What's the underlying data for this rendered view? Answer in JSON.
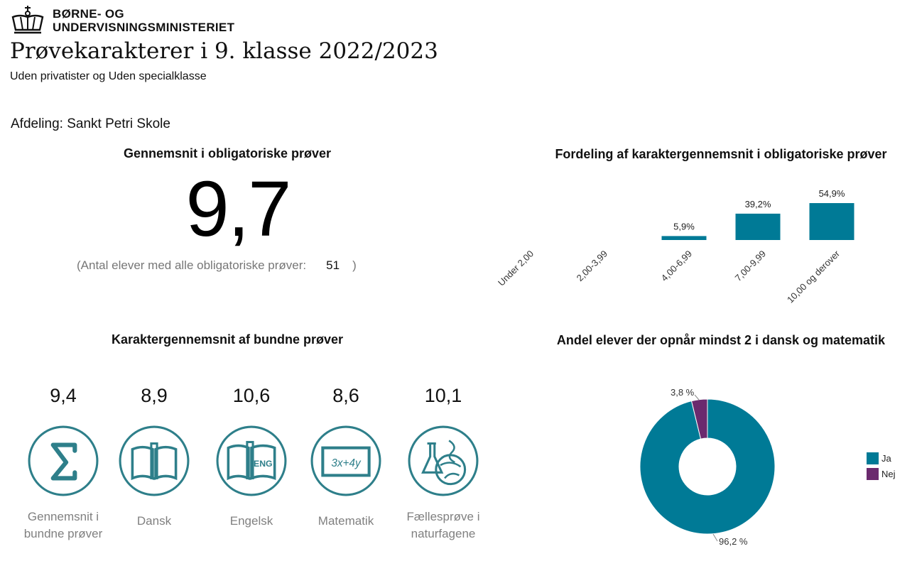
{
  "header": {
    "logo_line1": "BØRNE- OG",
    "logo_line2": "UNDERVISNINGSMINISTERIET",
    "title": "Prøvekarakterer i 9. klasse 2022/2023",
    "subtitle": "Uden privatister og Uden specialklasse",
    "afdeling": "Afdeling: Sankt Petri Skole"
  },
  "average": {
    "title": "Gennemsnit i obligatoriske prøver",
    "value": "9,7",
    "count_prefix": "(Antal elever med alle obligatoriske prøver:",
    "count": "51",
    "count_suffix": ")"
  },
  "subjects_title": "Karaktergennemsnit af bundne prøver",
  "subjects": [
    {
      "value": "9,4",
      "label_lines": [
        "Gennemsnit i",
        "bundne prøver"
      ],
      "icon": "sigma-icon"
    },
    {
      "value": "8,9",
      "label_lines": [
        "Dansk"
      ],
      "icon": "book-icon"
    },
    {
      "value": "10,6",
      "label_lines": [
        "Engelsk"
      ],
      "icon": "english-book-icon"
    },
    {
      "value": "8,6",
      "label_lines": [
        "Matematik"
      ],
      "icon": "math-board-icon"
    },
    {
      "value": "10,1",
      "label_lines": [
        "Fællesprøve i",
        "naturfagene"
      ],
      "icon": "science-icon"
    }
  ],
  "colors": {
    "teal": "#007a96",
    "purple": "#6b2a6e",
    "icon_teal": "#2e7f8a"
  },
  "chart_data": [
    {
      "type": "bar",
      "title": "Fordeling af karaktergennemsnit i obligatoriske prøver",
      "categories": [
        "Under 2,00",
        "2,00-3,99",
        "4,00-6,99",
        "7,00-9,99",
        "10,00 og derover"
      ],
      "values": [
        0,
        0,
        5.9,
        39.2,
        54.9
      ],
      "value_labels": [
        "",
        "",
        "5,9%",
        "39,2%",
        "54,9%"
      ],
      "ylim": [
        0,
        54.9
      ],
      "color": "#007a96"
    },
    {
      "type": "pie",
      "title": "Andel elever der opnår mindst 2 i dansk og matematik",
      "labels": [
        "Ja",
        "Nej"
      ],
      "values": [
        96.2,
        3.8
      ],
      "value_labels": [
        "96,2 %",
        "3,8 %"
      ],
      "colors": [
        "#007a96",
        "#6b2a6e"
      ],
      "legend": "right"
    }
  ]
}
